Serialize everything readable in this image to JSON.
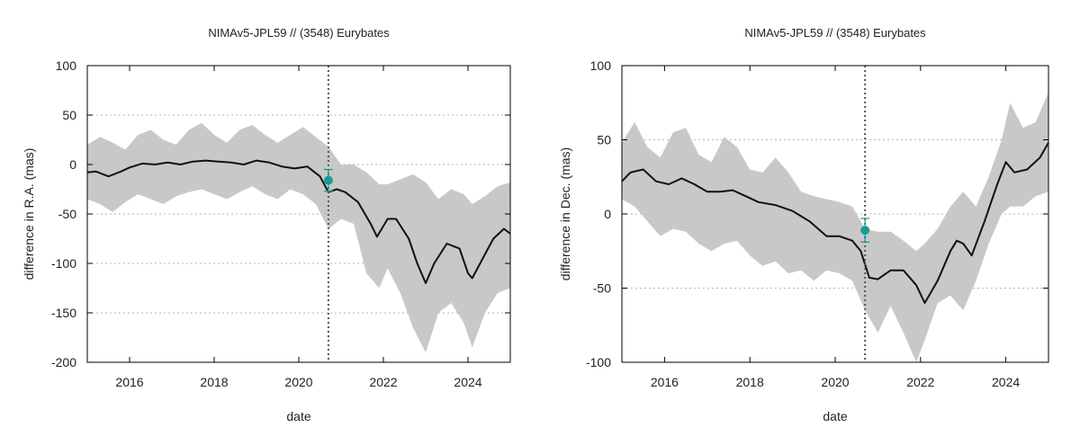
{
  "chart_data": [
    {
      "type": "line",
      "title": "NIMAv5-JPL59 // (3548) Eurybates",
      "xlabel": "date",
      "ylabel": "difference in R.A. (mas)",
      "xlim": [
        2015.0,
        2025.0
      ],
      "ylim": [
        -200,
        100
      ],
      "xticks": [
        2016,
        2018,
        2020,
        2022,
        2024
      ],
      "yticks": [
        -200,
        -150,
        -100,
        -50,
        0,
        50,
        100
      ],
      "grid": "horizontal dotted",
      "observation_date": 2020.7,
      "series": [
        {
          "role": "uncertainty band",
          "color": "#c8c8c8",
          "x": [
            2015.0,
            2015.3,
            2015.6,
            2015.9,
            2016.2,
            2016.5,
            2016.8,
            2017.1,
            2017.4,
            2017.7,
            2018.0,
            2018.3,
            2018.6,
            2018.9,
            2019.2,
            2019.5,
            2019.8,
            2020.1,
            2020.4,
            2020.7,
            2021.0,
            2021.3,
            2021.6,
            2021.9,
            2022.1,
            2022.4,
            2022.7,
            2023.0,
            2023.3,
            2023.6,
            2023.9,
            2024.1,
            2024.4,
            2024.7,
            2025.0
          ],
          "upper": [
            20,
            28,
            22,
            15,
            30,
            35,
            25,
            20,
            35,
            42,
            30,
            22,
            35,
            40,
            30,
            22,
            30,
            38,
            28,
            18,
            0,
            0,
            -8,
            -20,
            -20,
            -15,
            -10,
            -18,
            -35,
            -25,
            -30,
            -40,
            -32,
            -22,
            -18
          ],
          "lower": [
            -35,
            -40,
            -48,
            -38,
            -30,
            -35,
            -40,
            -32,
            -28,
            -25,
            -30,
            -35,
            -28,
            -22,
            -30,
            -35,
            -25,
            -30,
            -40,
            -65,
            -55,
            -60,
            -110,
            -125,
            -105,
            -130,
            -165,
            -190,
            -150,
            -140,
            -160,
            -185,
            -150,
            -130,
            -125
          ]
        },
        {
          "role": "difference",
          "color": "#111111",
          "x": [
            2015.0,
            2015.2,
            2015.5,
            2015.8,
            2016.0,
            2016.3,
            2016.6,
            2016.9,
            2017.2,
            2017.5,
            2017.8,
            2018.1,
            2018.4,
            2018.7,
            2019.0,
            2019.3,
            2019.6,
            2019.9,
            2020.2,
            2020.5,
            2020.7,
            2020.9,
            2021.1,
            2021.4,
            2021.7,
            2021.85,
            2022.1,
            2022.3,
            2022.6,
            2022.8,
            2023.0,
            2023.2,
            2023.5,
            2023.8,
            2024.0,
            2024.1,
            2024.35,
            2024.6,
            2024.85,
            2025.0
          ],
          "values": [
            -8,
            -7,
            -12,
            -7,
            -3,
            1,
            0,
            2,
            0,
            3,
            4,
            3,
            2,
            0,
            4,
            2,
            -2,
            -4,
            -2,
            -12,
            -28,
            -25,
            -28,
            -38,
            -60,
            -73,
            -55,
            -55,
            -75,
            -100,
            -120,
            -100,
            -80,
            -85,
            -110,
            -115,
            -95,
            -75,
            -65,
            -70
          ]
        }
      ],
      "observation": {
        "x": 2020.7,
        "y": -16,
        "err": 11,
        "color": "#1a9a96"
      }
    },
    {
      "type": "line",
      "title": "NIMAv5-JPL59 // (3548) Eurybates",
      "xlabel": "date",
      "ylabel": "difference in Dec. (mas)",
      "xlim": [
        2015.0,
        2025.0
      ],
      "ylim": [
        -100,
        100
      ],
      "xticks": [
        2016,
        2018,
        2020,
        2022,
        2024
      ],
      "yticks": [
        -100,
        -50,
        0,
        50,
        100
      ],
      "grid": "horizontal dotted",
      "observation_date": 2020.7,
      "series": [
        {
          "role": "uncertainty band",
          "color": "#c8c8c8",
          "x": [
            2015.0,
            2015.3,
            2015.6,
            2015.9,
            2016.2,
            2016.5,
            2016.8,
            2017.1,
            2017.4,
            2017.7,
            2018.0,
            2018.3,
            2018.6,
            2018.9,
            2019.2,
            2019.5,
            2019.8,
            2020.1,
            2020.4,
            2020.7,
            2021.0,
            2021.3,
            2021.6,
            2021.9,
            2022.1,
            2022.4,
            2022.7,
            2023.0,
            2023.3,
            2023.6,
            2023.9,
            2024.1,
            2024.4,
            2024.7,
            2025.0
          ],
          "upper": [
            48,
            62,
            45,
            38,
            55,
            58,
            40,
            35,
            52,
            45,
            30,
            28,
            38,
            28,
            15,
            12,
            10,
            8,
            5,
            -10,
            -12,
            -12,
            -18,
            -25,
            -20,
            -10,
            5,
            15,
            5,
            25,
            50,
            75,
            58,
            62,
            82
          ],
          "lower": [
            10,
            5,
            -5,
            -15,
            -10,
            -12,
            -20,
            -25,
            -20,
            -18,
            -28,
            -35,
            -32,
            -40,
            -38,
            -45,
            -38,
            -40,
            -45,
            -65,
            -80,
            -62,
            -80,
            -100,
            -85,
            -60,
            -55,
            -65,
            -45,
            -20,
            0,
            5,
            5,
            12,
            15
          ]
        },
        {
          "role": "difference",
          "color": "#111111",
          "x": [
            2015.0,
            2015.2,
            2015.5,
            2015.8,
            2016.1,
            2016.4,
            2016.7,
            2017.0,
            2017.3,
            2017.6,
            2017.9,
            2018.2,
            2018.6,
            2019.0,
            2019.4,
            2019.8,
            2020.1,
            2020.4,
            2020.6,
            2020.8,
            2021.0,
            2021.3,
            2021.6,
            2021.9,
            2022.1,
            2022.4,
            2022.7,
            2022.85,
            2023.0,
            2023.2,
            2023.5,
            2023.8,
            2024.0,
            2024.2,
            2024.5,
            2024.8,
            2025.0
          ],
          "values": [
            22,
            28,
            30,
            22,
            20,
            24,
            20,
            15,
            15,
            16,
            12,
            8,
            6,
            2,
            -5,
            -15,
            -15,
            -18,
            -25,
            -43,
            -44,
            -38,
            -38,
            -48,
            -60,
            -45,
            -25,
            -18,
            -20,
            -28,
            -5,
            20,
            35,
            28,
            30,
            38,
            48
          ]
        }
      ],
      "observation": {
        "x": 2020.7,
        "y": -11,
        "err": 8,
        "color": "#1a9a96"
      }
    }
  ]
}
